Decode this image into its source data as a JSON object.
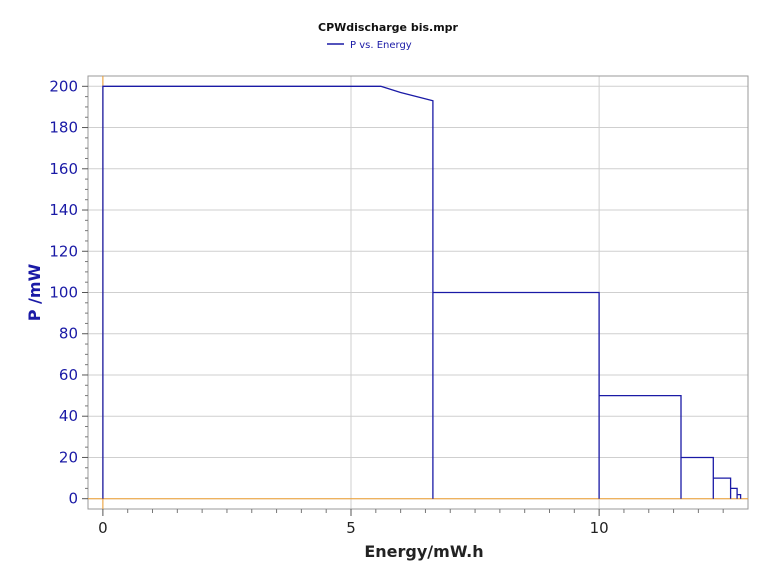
{
  "chart_data": {
    "type": "line",
    "title": "CPWdischarge bis.mpr",
    "xlabel": "Energy/mW.h",
    "ylabel": "P /mW",
    "xlim": [
      -0.3,
      13.0
    ],
    "ylim": [
      -5,
      205
    ],
    "xticks": [
      0,
      5,
      10
    ],
    "yticks": [
      0,
      20,
      40,
      60,
      80,
      100,
      120,
      140,
      160,
      180,
      200
    ],
    "grid": true,
    "legend_position": "top-center",
    "series": [
      {
        "name": "P vs. Energy",
        "color": "#1a1aa6",
        "x": [
          0,
          0,
          5.6,
          6.0,
          6.65,
          6.65,
          6.65,
          6.65,
          10.0,
          10.0,
          10.0,
          10.0,
          11.65,
          11.65,
          11.65,
          11.65,
          12.3,
          12.3,
          12.3,
          12.3,
          12.65,
          12.65,
          12.65,
          12.65,
          12.78,
          12.78,
          12.78,
          12.78,
          12.85,
          12.85
        ],
        "y": [
          0,
          200,
          200,
          197,
          193,
          0,
          0,
          100,
          100,
          0,
          0,
          50,
          50,
          0,
          0,
          20,
          20,
          0,
          0,
          10,
          10,
          0,
          0,
          5,
          5,
          0,
          0,
          2,
          2,
          0
        ]
      }
    ],
    "zero_lines_color": "#f0a030"
  }
}
